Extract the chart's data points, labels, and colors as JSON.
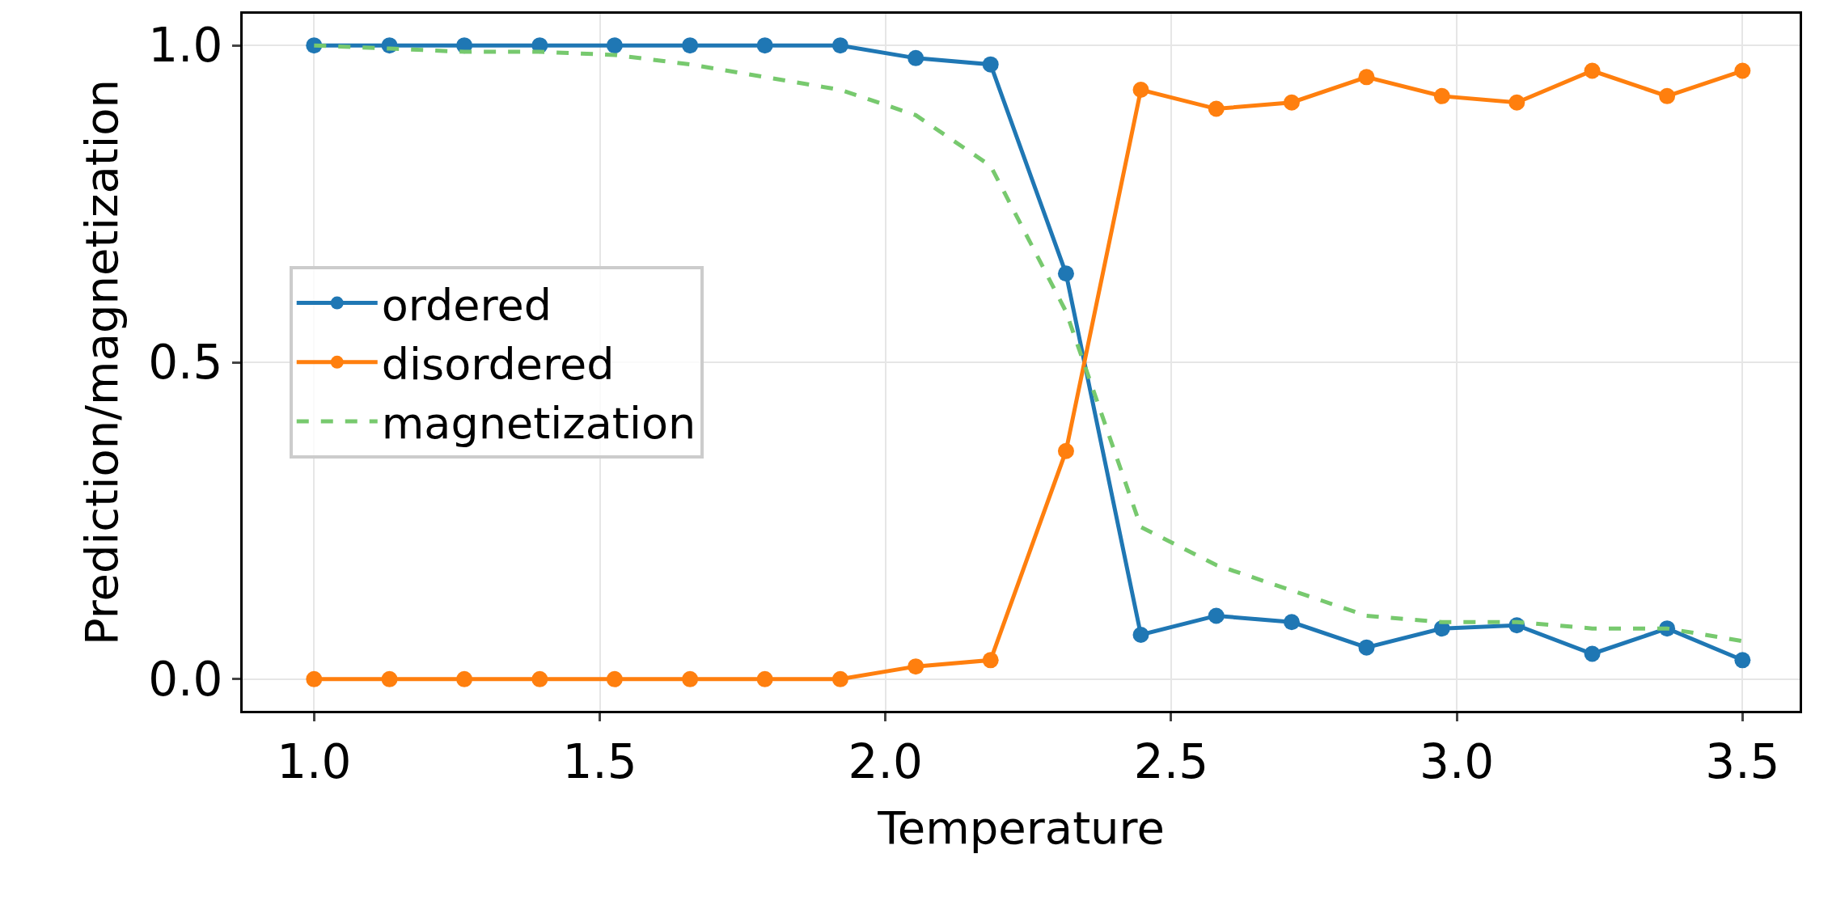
{
  "chart_data": {
    "type": "line",
    "xlabel": "Temperature",
    "ylabel": "Prediction/magnetization",
    "x": [
      1.0,
      1.132,
      1.263,
      1.395,
      1.526,
      1.658,
      1.789,
      1.921,
      2.053,
      2.184,
      2.316,
      2.447,
      2.579,
      2.711,
      2.842,
      2.974,
      3.105,
      3.237,
      3.368,
      3.5
    ],
    "series": [
      {
        "name": "ordered",
        "color": "#1f77b4",
        "marker": "circle",
        "line_style": "solid",
        "values": [
          1.0,
          1.0,
          1.0,
          1.0,
          1.0,
          1.0,
          1.0,
          1.0,
          0.98,
          0.97,
          0.64,
          0.07,
          0.1,
          0.09,
          0.05,
          0.08,
          0.085,
          0.04,
          0.08,
          0.03
        ]
      },
      {
        "name": "disordered",
        "color": "#ff7f0e",
        "marker": "circle",
        "line_style": "solid",
        "values": [
          0.0,
          0.0,
          0.0,
          0.0,
          0.0,
          0.0,
          0.0,
          0.0,
          0.02,
          0.03,
          0.36,
          0.93,
          0.9,
          0.91,
          0.95,
          0.92,
          0.91,
          0.96,
          0.92,
          0.96
        ]
      },
      {
        "name": "magnetization",
        "color": "#77c96e",
        "marker": "none",
        "line_style": "dashed",
        "values": [
          1.0,
          0.995,
          0.99,
          0.99,
          0.985,
          0.97,
          0.95,
          0.93,
          0.89,
          0.81,
          0.58,
          0.24,
          0.18,
          0.14,
          0.1,
          0.09,
          0.09,
          0.08,
          0.08,
          0.06
        ]
      }
    ],
    "xlim": [
      0.875,
      3.6
    ],
    "xticks": [
      {
        "value": 1,
        "label": "1.0"
      },
      1.5,
      {
        "value": 2,
        "label": "2.0"
      },
      2.5,
      {
        "value": 3,
        "label": "3.0"
      },
      3.5
    ],
    "ylim": [
      -0.05,
      1.05
    ],
    "yticks": [
      {
        "value": 0,
        "label": "0.0"
      },
      0.5,
      {
        "value": 1,
        "label": "1.0"
      }
    ],
    "grid": true,
    "legend": "left"
  }
}
